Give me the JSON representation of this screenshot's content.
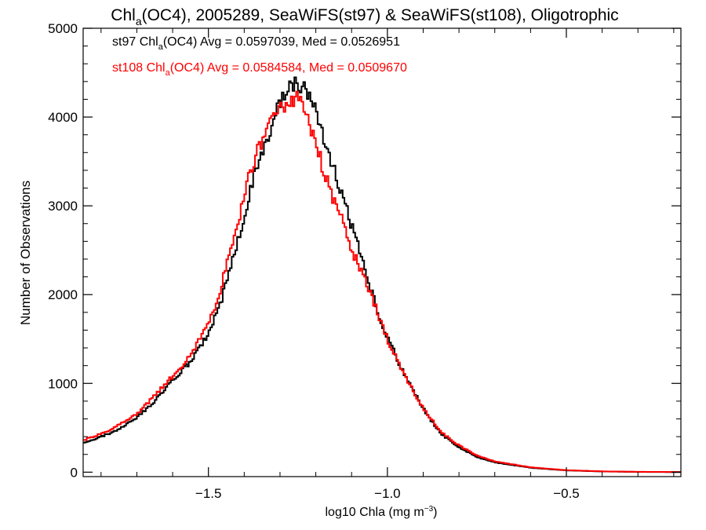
{
  "chart_data": {
    "type": "line",
    "title_parts": [
      "Chl",
      "a",
      "(OC4), 2005289, SeaWiFS(st97) & SeaWiFS(st108), Oligotrophic"
    ],
    "xlabel_parts": [
      "log10 Chla (mg m",
      "−3",
      ")"
    ],
    "ylabel": "Number of Observations",
    "xlim": [
      -1.85,
      -0.18
    ],
    "ylim": [
      -50,
      5000
    ],
    "x_ticks": [
      -1.5,
      -1.0,
      -0.5
    ],
    "x_tick_labels": [
      "−1.5",
      "−1.0",
      "−0.5"
    ],
    "y_ticks": [
      0,
      1000,
      2000,
      3000,
      4000,
      5000
    ],
    "y_tick_labels": [
      "0",
      "1000",
      "2000",
      "3000",
      "4000",
      "5000"
    ],
    "x_minor_step": 0.1,
    "y_minor_step": 200,
    "grid": false,
    "series": [
      {
        "color": "#000000",
        "stats_parts": [
          "st97 Chl",
          "a",
          "(OC4) Avg = 0.0597039, Med = 0.0526951"
        ],
        "points": [
          [
            -1.85,
            330
          ],
          [
            -1.8,
            400
          ],
          [
            -1.75,
            480
          ],
          [
            -1.7,
            610
          ],
          [
            -1.65,
            800
          ],
          [
            -1.6,
            1030
          ],
          [
            -1.55,
            1250
          ],
          [
            -1.5,
            1560
          ],
          [
            -1.47,
            1850
          ],
          [
            -1.45,
            2130
          ],
          [
            -1.42,
            2560
          ],
          [
            -1.4,
            2900
          ],
          [
            -1.38,
            3230
          ],
          [
            -1.35,
            3620
          ],
          [
            -1.32,
            3950
          ],
          [
            -1.3,
            4150
          ],
          [
            -1.28,
            4300
          ],
          [
            -1.26,
            4390
          ],
          [
            -1.25,
            4400
          ],
          [
            -1.23,
            4300
          ],
          [
            -1.2,
            4050
          ],
          [
            -1.18,
            3800
          ],
          [
            -1.15,
            3420
          ],
          [
            -1.12,
            3030
          ],
          [
            -1.1,
            2780
          ],
          [
            -1.07,
            2380
          ],
          [
            -1.05,
            2100
          ],
          [
            -1.02,
            1720
          ],
          [
            -1.0,
            1530
          ],
          [
            -0.97,
            1250
          ],
          [
            -0.95,
            1080
          ],
          [
            -0.92,
            860
          ],
          [
            -0.9,
            720
          ],
          [
            -0.87,
            540
          ],
          [
            -0.85,
            430
          ],
          [
            -0.8,
            280
          ],
          [
            -0.75,
            170
          ],
          [
            -0.7,
            110
          ],
          [
            -0.6,
            50
          ],
          [
            -0.5,
            20
          ],
          [
            -0.4,
            8
          ],
          [
            -0.3,
            3
          ],
          [
            -0.2,
            1
          ]
        ]
      },
      {
        "color": "#ff0000",
        "stats_parts": [
          "st108 Chl",
          "a",
          "(OC4) Avg = 0.0584584, Med = 0.0509670"
        ],
        "points": [
          [
            -1.85,
            360
          ],
          [
            -1.8,
            430
          ],
          [
            -1.75,
            530
          ],
          [
            -1.7,
            650
          ],
          [
            -1.65,
            860
          ],
          [
            -1.6,
            1080
          ],
          [
            -1.55,
            1310
          ],
          [
            -1.5,
            1680
          ],
          [
            -1.47,
            2000
          ],
          [
            -1.45,
            2330
          ],
          [
            -1.42,
            2780
          ],
          [
            -1.4,
            3100
          ],
          [
            -1.38,
            3430
          ],
          [
            -1.35,
            3750
          ],
          [
            -1.32,
            4000
          ],
          [
            -1.3,
            4100
          ],
          [
            -1.28,
            4150
          ],
          [
            -1.26,
            4180
          ],
          [
            -1.25,
            4200
          ],
          [
            -1.23,
            4050
          ],
          [
            -1.2,
            3720
          ],
          [
            -1.18,
            3420
          ],
          [
            -1.15,
            3050
          ],
          [
            -1.12,
            2770
          ],
          [
            -1.1,
            2500
          ],
          [
            -1.07,
            2250
          ],
          [
            -1.05,
            2050
          ],
          [
            -1.02,
            1720
          ],
          [
            -1.0,
            1500
          ],
          [
            -0.97,
            1240
          ],
          [
            -0.95,
            1070
          ],
          [
            -0.92,
            860
          ],
          [
            -0.9,
            720
          ],
          [
            -0.87,
            560
          ],
          [
            -0.85,
            450
          ],
          [
            -0.8,
            300
          ],
          [
            -0.75,
            190
          ],
          [
            -0.7,
            120
          ],
          [
            -0.6,
            55
          ],
          [
            -0.5,
            22
          ],
          [
            -0.4,
            9
          ],
          [
            -0.3,
            4
          ],
          [
            -0.2,
            2
          ]
        ]
      }
    ]
  }
}
